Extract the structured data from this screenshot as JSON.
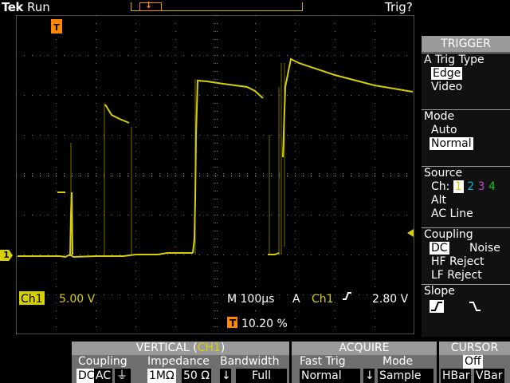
{
  "status": {
    "brand": "Tek",
    "run_state": "Run",
    "trig_state": "Trig?"
  },
  "readout": {
    "ch_label": "Ch1",
    "ch_scale": "5.00 V",
    "timebase": "M 100µs",
    "trig_mode_letter": "A",
    "trig_source": "Ch1",
    "trig_level": "2.80 V",
    "trig_pos_marker": "T",
    "trig_pos": "10.20 %"
  },
  "markers": {
    "trigger_point": "T",
    "channel1_ground": "1"
  },
  "trigger_menu": {
    "title": "TRIGGER",
    "type_label": "A Trig Type",
    "type_options": [
      "Edge",
      "Video"
    ],
    "type_selected": "Edge",
    "mode_label": "Mode",
    "mode_options": [
      "Auto",
      "Normal"
    ],
    "mode_selected": "Normal",
    "source_label": "Source",
    "source_ch_prefix": "Ch:",
    "source_channels": [
      "1",
      "2",
      "3",
      "4"
    ],
    "source_selected": "1",
    "source_alt": "Alt",
    "source_ac_line": "AC Line",
    "coupling_label": "Coupling",
    "coupling_dc": "DC",
    "coupling_noise": "Noise",
    "coupling_hf": "HF Reject",
    "coupling_lf": "LF Reject",
    "slope_label": "Slope"
  },
  "vertical_panel": {
    "title_prefix": "VERTICAL (",
    "title_ch": "CH1",
    "title_suffix": ")",
    "coupling_label": "Coupling",
    "coupling_dc": "DC",
    "coupling_ac": "AC",
    "impedance_label": "Impedance",
    "impedance_1m": "1MΩ",
    "impedance_50": "50 Ω",
    "bandwidth_label": "Bandwidth",
    "bandwidth_value": "Full"
  },
  "acquire_panel": {
    "title": "ACQUIRE",
    "fast_trig_label": "Fast Trig",
    "fast_trig_value": "Normal",
    "mode_label": "Mode",
    "mode_value": "Sample"
  },
  "cursor_panel": {
    "title": "CURSOR",
    "state": "Off",
    "hbar": "HBar",
    "vbar": "VBar"
  },
  "colors": {
    "channel1": "#d7d000",
    "channel2": "#00b8d8",
    "channel3": "#c040c0",
    "channel4": "#20c020",
    "trigger": "#ff8800"
  }
}
